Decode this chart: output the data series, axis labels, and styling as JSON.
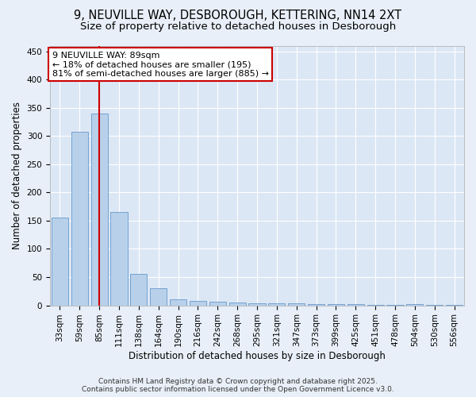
{
  "title": "9, NEUVILLE WAY, DESBOROUGH, KETTERING, NN14 2XT",
  "subtitle": "Size of property relative to detached houses in Desborough",
  "xlabel": "Distribution of detached houses by size in Desborough",
  "ylabel": "Number of detached properties",
  "bar_labels": [
    "33sqm",
    "59sqm",
    "85sqm",
    "111sqm",
    "138sqm",
    "164sqm",
    "190sqm",
    "216sqm",
    "242sqm",
    "268sqm",
    "295sqm",
    "321sqm",
    "347sqm",
    "373sqm",
    "399sqm",
    "425sqm",
    "451sqm",
    "478sqm",
    "504sqm",
    "530sqm",
    "556sqm"
  ],
  "bar_values": [
    155,
    308,
    340,
    165,
    55,
    30,
    10,
    8,
    6,
    5,
    4,
    3,
    3,
    2,
    2,
    2,
    1,
    1,
    2,
    1,
    1
  ],
  "bar_color": "#b8d0ea",
  "bar_edge_color": "#6699cc",
  "highlight_bar_index": 2,
  "highlight_line_color": "#cc0000",
  "annotation_line1": "9 NEUVILLE WAY: 89sqm",
  "annotation_line2": "← 18% of detached houses are smaller (195)",
  "annotation_line3": "81% of semi-detached houses are larger (885) →",
  "annotation_box_color": "#ffffff",
  "annotation_box_edge": "#cc0000",
  "ylim": [
    0,
    460
  ],
  "yticks": [
    0,
    50,
    100,
    150,
    200,
    250,
    300,
    350,
    400,
    450
  ],
  "background_color": "#e8eff8",
  "plot_bg_color": "#dce7f5",
  "grid_color": "#ffffff",
  "footer_line1": "Contains HM Land Registry data © Crown copyright and database right 2025.",
  "footer_line2": "Contains public sector information licensed under the Open Government Licence v3.0.",
  "title_fontsize": 10.5,
  "subtitle_fontsize": 9.5,
  "axis_label_fontsize": 8.5,
  "tick_fontsize": 7.5,
  "annotation_fontsize": 8,
  "footer_fontsize": 6.5
}
